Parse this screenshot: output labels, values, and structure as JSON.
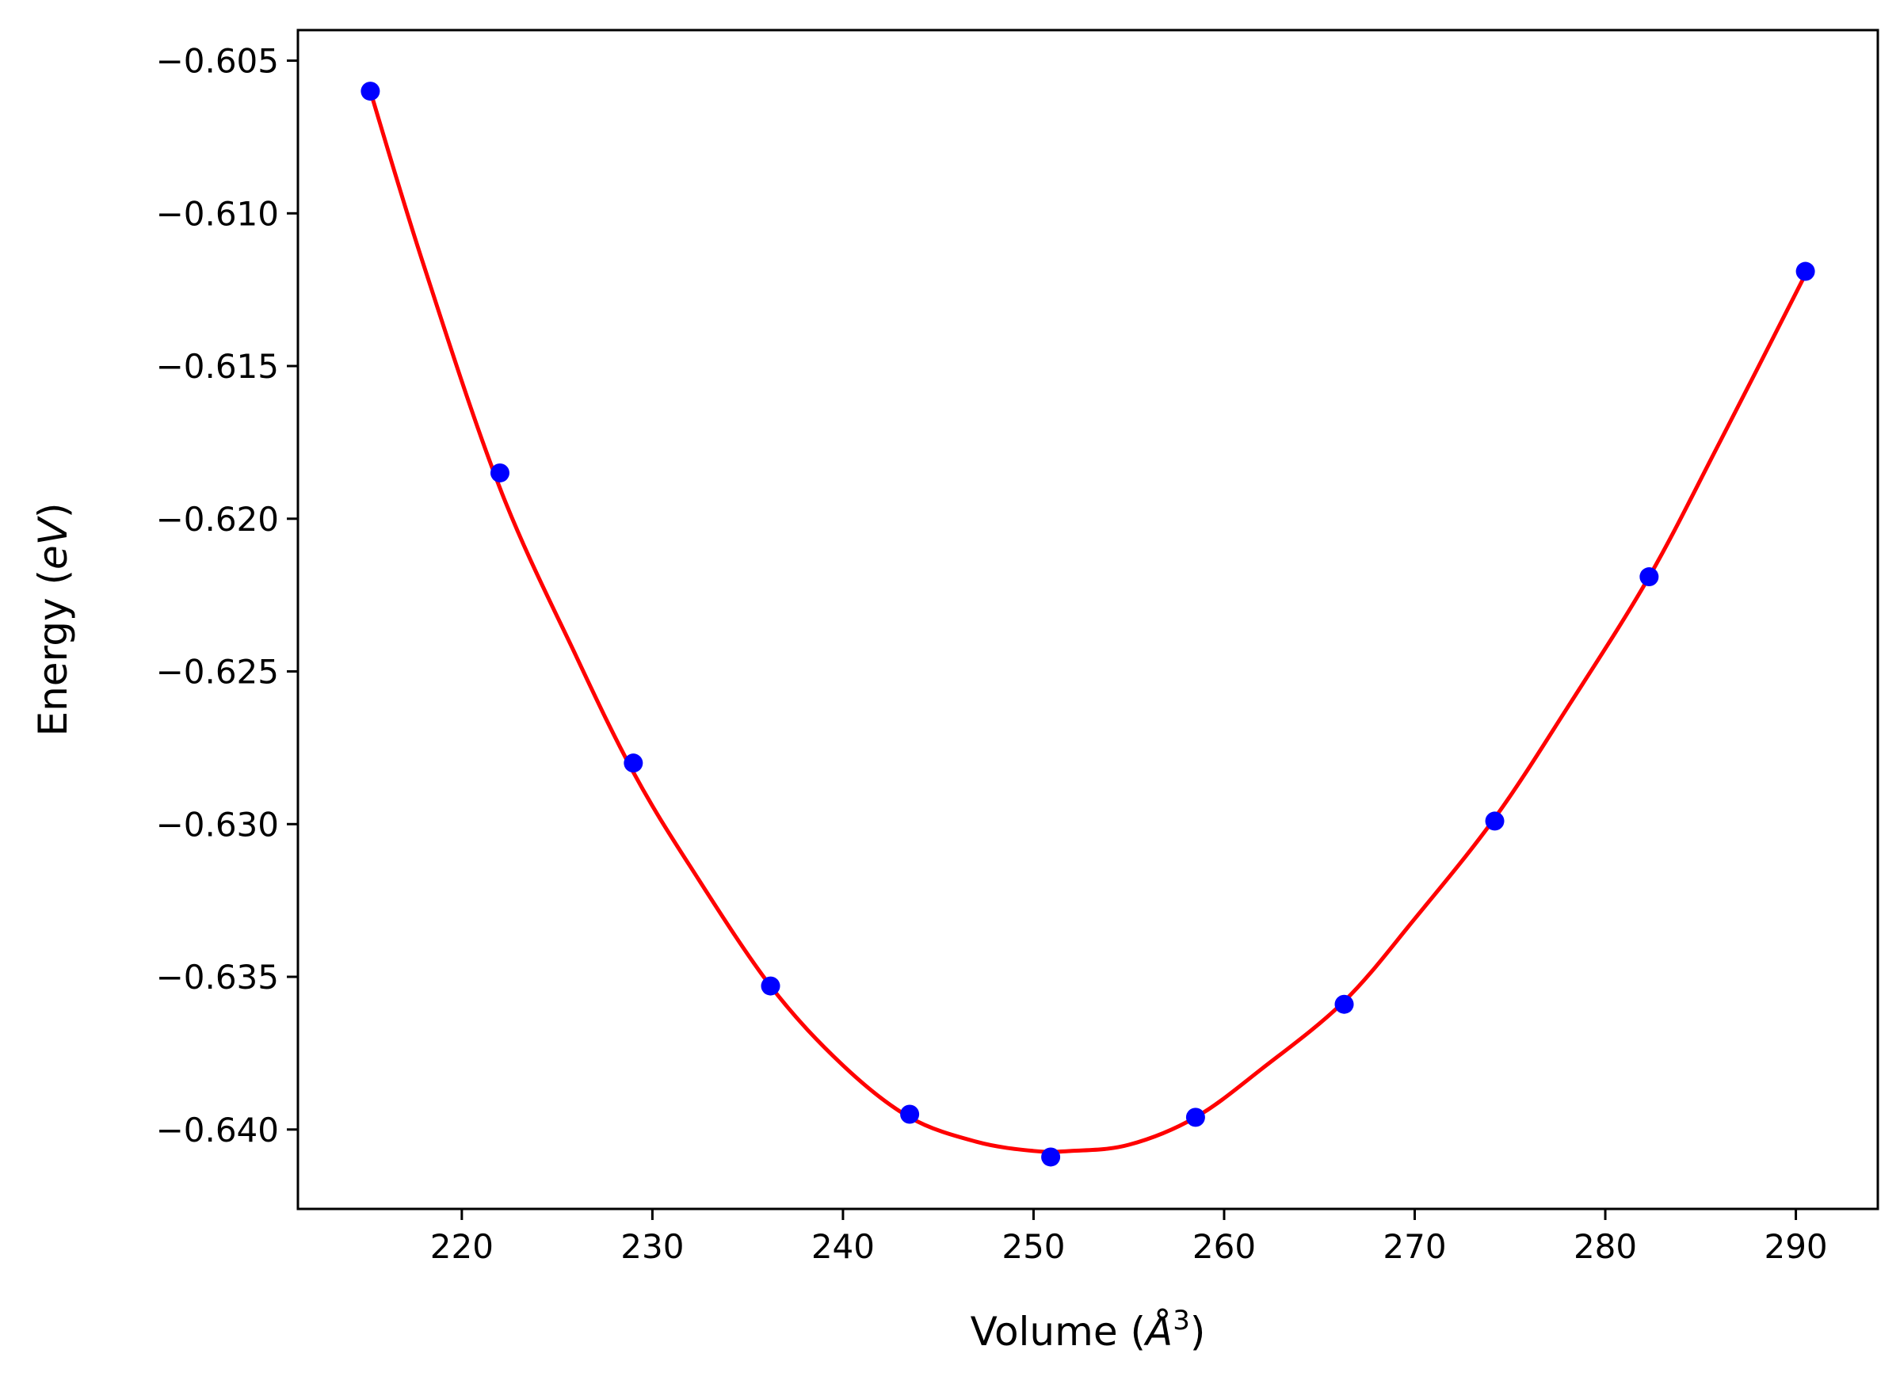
{
  "chart_data": {
    "type": "scatter",
    "xlabel": {
      "main": "Volume (",
      "unit_symbol": "Å",
      "unit_power": "3",
      "close": ")"
    },
    "ylabel": {
      "main": "Energy (",
      "unit": "eV",
      "close": ")"
    },
    "xlim": [
      211.4,
      294.3
    ],
    "ylim": [
      -0.6426,
      -0.604
    ],
    "x_ticks": [
      220,
      230,
      240,
      250,
      260,
      270,
      280,
      290
    ],
    "y_ticks": [
      -0.605,
      -0.61,
      -0.615,
      -0.62,
      -0.625,
      -0.63,
      -0.635,
      -0.64
    ],
    "x_tick_labels": [
      "220",
      "230",
      "240",
      "250",
      "260",
      "270",
      "280",
      "290"
    ],
    "y_tick_labels": [
      "−0.605",
      "−0.610",
      "−0.615",
      "−0.620",
      "−0.625",
      "−0.630",
      "−0.635",
      "−0.640"
    ],
    "grid": false,
    "series": [
      {
        "kind": "points",
        "color": "#0000ff",
        "x": [
          215.2,
          222.0,
          229.0,
          236.2,
          243.5,
          250.9,
          258.5,
          266.3,
          274.2,
          282.3,
          290.5
        ],
        "y": [
          -0.606,
          -0.6185,
          -0.628,
          -0.6353,
          -0.6395,
          -0.6409,
          -0.6396,
          -0.6359,
          -0.6299,
          -0.6219,
          -0.6119
        ]
      },
      {
        "kind": "fit-line",
        "color": "#ff0000",
        "x": [
          215.2,
          218.0,
          222.0,
          226.0,
          229.0,
          232.0,
          236.2,
          240.0,
          243.5,
          247.0,
          250.0,
          252.0,
          255.0,
          258.5,
          262.0,
          266.3,
          270.0,
          274.2,
          278.0,
          282.3,
          286.0,
          290.5
        ],
        "y": [
          -0.606,
          -0.6117,
          -0.619,
          -0.6245,
          -0.6283,
          -0.6314,
          -0.6353,
          -0.6379,
          -0.6396,
          -0.6404,
          -0.6407,
          -0.6407,
          -0.6405,
          -0.6396,
          -0.638,
          -0.6358,
          -0.6331,
          -0.6298,
          -0.6262,
          -0.6219,
          -0.6175,
          -0.612
        ]
      }
    ]
  }
}
